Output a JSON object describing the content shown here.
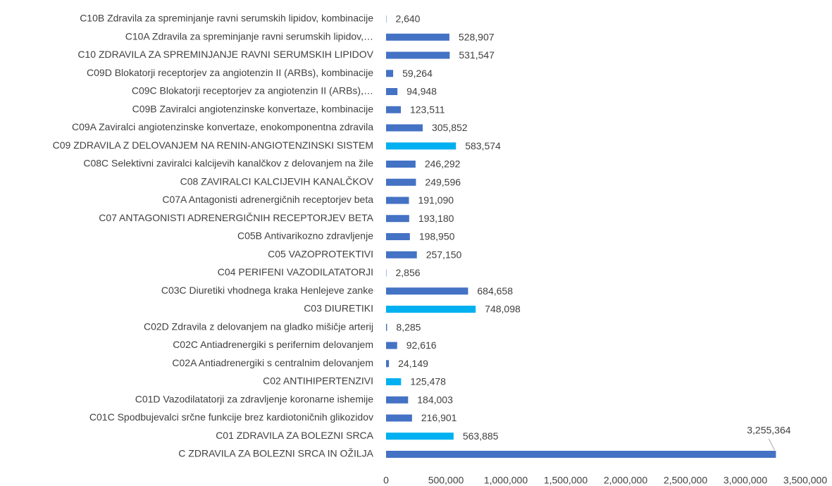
{
  "chart_data": {
    "type": "barh",
    "categories": [
      "C10B Zdravila za spreminjanje ravni serumskih lipidov, kombinacije",
      "C10A Zdravila za spreminjanje ravni serumskih lipidov,…",
      "C10 ZDRAVILA ZA SPREMINJANJE RAVNI SERUMSKIH LIPIDOV",
      "C09D Blokatorji receptorjev za angiotenzin II (ARBs), kombinacije",
      "C09C Blokatorji receptorjev za angiotenzin II (ARBs),…",
      "C09B Zaviralci angiotenzinske konvertaze, kombinacije",
      "C09A Zaviralci angiotenzinske konvertaze, enokomponentna zdravila",
      "C09 ZDRAVILA Z DELOVANJEM NA RENIN-ANGIOTENZINSKI SISTEM",
      "C08C Selektivni zaviralci kalcijevih kanalčkov z delovanjem na žile",
      "C08 ZAVIRALCI KALCIJEVIH KANALČKOV",
      "C07A Antagonisti adrenergičnih receptorjev beta",
      "C07 ANTAGONISTI ADRENERGIČNIH RECEPTORJEV BETA",
      "C05B Antivarikozno zdravljenje",
      "C05 VAZOPROTEKTIVI",
      "C04 PERIFENI VAZODILATATORJI",
      "C03C Diuretiki vhodnega kraka Henlejeve zanke",
      "C03 DIURETIKI",
      "C02D Zdravila z delovanjem na gladko mišičje arterij",
      "C02C Antiadrenergiki s perifernim delovanjem",
      "C02A Antiadrenergiki s centralnim delovanjem",
      "C02 ANTIHIPERTENZIVI",
      "C01D Vazodilatatorji za zdravljenje koronarne ishemije",
      "C01C Spodbujevalci srčne funkcije brez kardiotoničnih glikozidov",
      "C01 ZDRAVILA ZA BOLEZNI SRCA",
      "C ZDRAVILA ZA BOLEZNI SRCA IN OŽILJA"
    ],
    "values": [
      2640,
      528907,
      531547,
      59264,
      94948,
      123511,
      305852,
      583574,
      246292,
      249596,
      191090,
      193180,
      198950,
      257150,
      2856,
      684658,
      748098,
      8285,
      92616,
      24149,
      125478,
      184003,
      216901,
      563885,
      3255364
    ],
    "value_labels": [
      "2,640",
      "528,907",
      "531,547",
      "59,264",
      "94,948",
      "123,511",
      "305,852",
      "583,574",
      "246,292",
      "249,596",
      "191,090",
      "193,180",
      "198,950",
      "257,150",
      "2,856",
      "684,658",
      "748,098",
      "8,285",
      "92,616",
      "24,149",
      "125,478",
      "184,003",
      "216,901",
      "563,885",
      "3,255,364"
    ],
    "colors": [
      "#4472c4",
      "#4472c4",
      "#4472c4",
      "#4472c4",
      "#4472c4",
      "#4472c4",
      "#4472c4",
      "#00b0f0",
      "#4472c4",
      "#4472c4",
      "#4472c4",
      "#4472c4",
      "#4472c4",
      "#4472c4",
      "#4472c4",
      "#4472c4",
      "#00b0f0",
      "#4472c4",
      "#4472c4",
      "#4472c4",
      "#00b0f0",
      "#4472c4",
      "#4472c4",
      "#00b0f0",
      "#4472c4"
    ],
    "xlim": [
      0,
      3500000
    ],
    "xticks": [
      0,
      {
        "value": 500000,
        "label": "500,000"
      },
      {
        "value": 1000000,
        "label": "1,000,000"
      },
      {
        "value": 1500000,
        "label": "1,500,000"
      },
      {
        "value": 2000000,
        "label": "2,000,000"
      },
      {
        "value": 2500000,
        "label": "2,500,000"
      },
      {
        "value": 3000000,
        "label": "3,000,000"
      },
      {
        "value": 3500000,
        "label": "3,500,000"
      }
    ],
    "grid": false
  }
}
